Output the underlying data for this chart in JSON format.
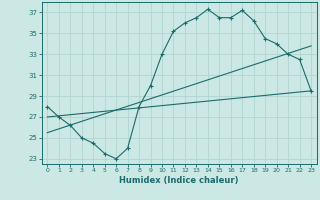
{
  "xlabel": "Humidex (Indice chaleur)",
  "bg_color": "#cce8e4",
  "grid_color": "#b0d4d0",
  "line_color": "#1a6b6b",
  "xlim": [
    -0.5,
    23.5
  ],
  "ylim": [
    22.5,
    38.0
  ],
  "xticks": [
    0,
    1,
    2,
    3,
    4,
    5,
    6,
    7,
    8,
    9,
    10,
    11,
    12,
    13,
    14,
    15,
    16,
    17,
    18,
    19,
    20,
    21,
    22,
    23
  ],
  "yticks": [
    23,
    25,
    27,
    29,
    31,
    33,
    35,
    37
  ],
  "main_x": [
    0,
    1,
    2,
    3,
    4,
    5,
    6,
    7,
    8,
    9,
    10,
    11,
    12,
    13,
    14,
    15,
    16,
    17,
    18,
    19,
    20,
    21,
    22,
    23
  ],
  "main_y": [
    28.0,
    27.0,
    26.2,
    25.0,
    24.5,
    23.5,
    23.0,
    24.0,
    28.0,
    30.0,
    33.0,
    35.2,
    36.0,
    36.5,
    37.3,
    36.5,
    36.5,
    37.2,
    36.2,
    34.5,
    34.0,
    33.0,
    32.5,
    29.5
  ],
  "line2_x": [
    0,
    23
  ],
  "line2_y": [
    27.0,
    29.5
  ],
  "line3_x": [
    0,
    23
  ],
  "line3_y": [
    25.5,
    33.8
  ],
  "marker": "+"
}
